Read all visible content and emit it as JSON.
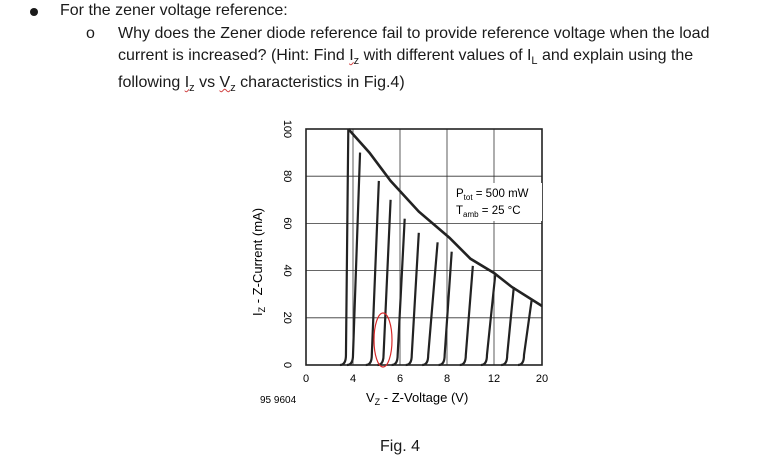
{
  "prompt": {
    "heading": "For the zener voltage reference:",
    "sub_marker": "o",
    "question_part1": "Why does the Zener diode reference fail to provide reference voltage when the load current is increased? (Hint: Find ",
    "iz_text": "I",
    "iz_sub": "z",
    "question_part2": " with different values of I",
    "il_sub": "L",
    "question_part3": " and explain using the following ",
    "iz2_text": "I",
    "iz2_sub": "z",
    "question_part4": " vs ",
    "vz_text": "V",
    "vz_sub": "z",
    "question_part5": " characteristics in Fig.4)"
  },
  "figure": {
    "caption": "Fig. 4",
    "code": "95 9604",
    "annotation_ptot": "P",
    "annotation_ptot_sub": "tot",
    "annotation_ptot_value": " = 500 mW",
    "annotation_tamb": "T",
    "annotation_tamb_sub": "amb",
    "annotation_tamb_value": " = 25 °C",
    "highlight_color": "#d62828"
  },
  "chart_data": {
    "type": "line",
    "xlabel": "V",
    "xlabel_sub": "Z",
    "xlabel_rest": " - Z-Voltage (V)",
    "ylabel": "I",
    "ylabel_sub": "Z",
    "ylabel_rest": " - Z-Current (mA)",
    "x_ticks": [
      "0",
      "4",
      "6",
      "8",
      "12",
      "20"
    ],
    "y_ticks": [
      "0",
      "20",
      "40",
      "60",
      "80",
      "100"
    ],
    "ylim": [
      0,
      100
    ],
    "power_limit_curve": {
      "name": "Ptot = 500 mW",
      "x": [
        3.6,
        4.7,
        5.6,
        6.8,
        8.2,
        10,
        12,
        15,
        20
      ],
      "y": [
        100,
        90,
        78,
        65,
        54,
        45,
        39,
        33,
        25
      ]
    },
    "zener_curves": [
      {
        "vz": 3.6,
        "x_bottom": 3.4,
        "x_top": 3.6,
        "y_top": 100
      },
      {
        "vz": 4.3,
        "x_bottom": 4.0,
        "x_top": 4.3,
        "y_top": 90
      },
      {
        "vz": 5.1,
        "x_bottom": 4.8,
        "x_top": 5.1,
        "y_top": 78
      },
      {
        "vz": 5.6,
        "x_bottom": 5.3,
        "x_top": 5.6,
        "y_top": 70
      },
      {
        "vz": 6.2,
        "x_bottom": 5.9,
        "x_top": 6.2,
        "y_top": 62
      },
      {
        "vz": 6.8,
        "x_bottom": 6.5,
        "x_top": 6.8,
        "y_top": 56
      },
      {
        "vz": 7.5,
        "x_bottom": 7.2,
        "x_top": 7.6,
        "y_top": 52
      },
      {
        "vz": 8.2,
        "x_bottom": 7.9,
        "x_top": 8.4,
        "y_top": 48
      },
      {
        "vz": 10,
        "x_bottom": 9.6,
        "x_top": 10.2,
        "y_top": 42
      },
      {
        "vz": 12,
        "x_bottom": 11.4,
        "x_top": 12.2,
        "y_top": 38
      },
      {
        "vz": 15,
        "x_bottom": 14.2,
        "x_top": 15.3,
        "y_top": 33
      },
      {
        "vz": 18,
        "x_bottom": 17,
        "x_top": 18.3,
        "y_top": 28
      }
    ],
    "grid": true
  }
}
